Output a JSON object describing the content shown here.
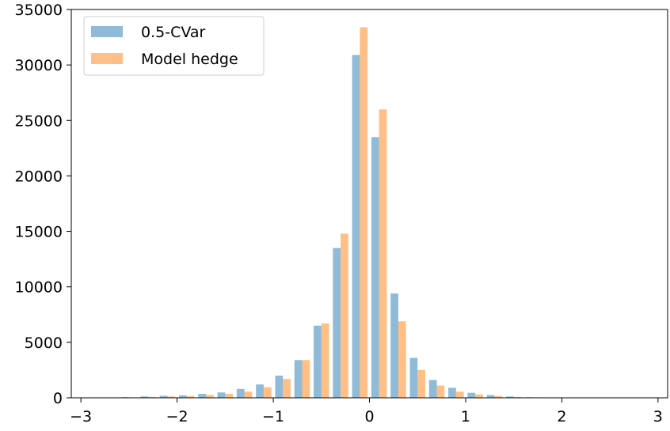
{
  "chart_data": {
    "type": "bar",
    "title": "",
    "xlabel": "",
    "ylabel": "",
    "xlim": [
      -3.1,
      3.1
    ],
    "ylim": [
      0,
      35000
    ],
    "grid": false,
    "legend_position": "upper-left",
    "x_ticks": [
      -3,
      -2,
      -1,
      0,
      1,
      2,
      3
    ],
    "x_tick_labels": [
      "−3",
      "−2",
      "−1",
      "0",
      "1",
      "2",
      "3"
    ],
    "y_ticks": [
      0,
      5000,
      10000,
      15000,
      20000,
      25000,
      30000,
      35000
    ],
    "y_tick_labels": [
      "0",
      "5000",
      "10000",
      "15000",
      "20000",
      "25000",
      "30000",
      "35000"
    ],
    "bin_width": 0.2,
    "x": [
      -2.7,
      -2.5,
      -2.3,
      -2.1,
      -1.9,
      -1.7,
      -1.5,
      -1.3,
      -1.1,
      -0.9,
      -0.7,
      -0.5,
      -0.3,
      -0.1,
      0.1,
      0.3,
      0.5,
      0.7,
      0.9,
      1.1,
      1.3,
      1.5,
      1.7,
      1.9,
      2.1,
      2.3,
      2.5,
      2.7
    ],
    "series": [
      {
        "name": "0.5-CVar",
        "color": "#1f77b4",
        "values": [
          30,
          60,
          120,
          180,
          220,
          350,
          480,
          800,
          1200,
          2000,
          3400,
          6500,
          13500,
          30900,
          23500,
          9400,
          3600,
          1600,
          900,
          450,
          250,
          120,
          50,
          30,
          15,
          10,
          5,
          5
        ]
      },
      {
        "name": "Model hedge",
        "color": "#ff7f0e",
        "values": [
          20,
          40,
          80,
          120,
          150,
          250,
          350,
          550,
          950,
          1700,
          3400,
          6700,
          14800,
          33400,
          26000,
          6900,
          2500,
          1100,
          550,
          300,
          150,
          80,
          40,
          20,
          10,
          5,
          5,
          5
        ]
      }
    ]
  }
}
